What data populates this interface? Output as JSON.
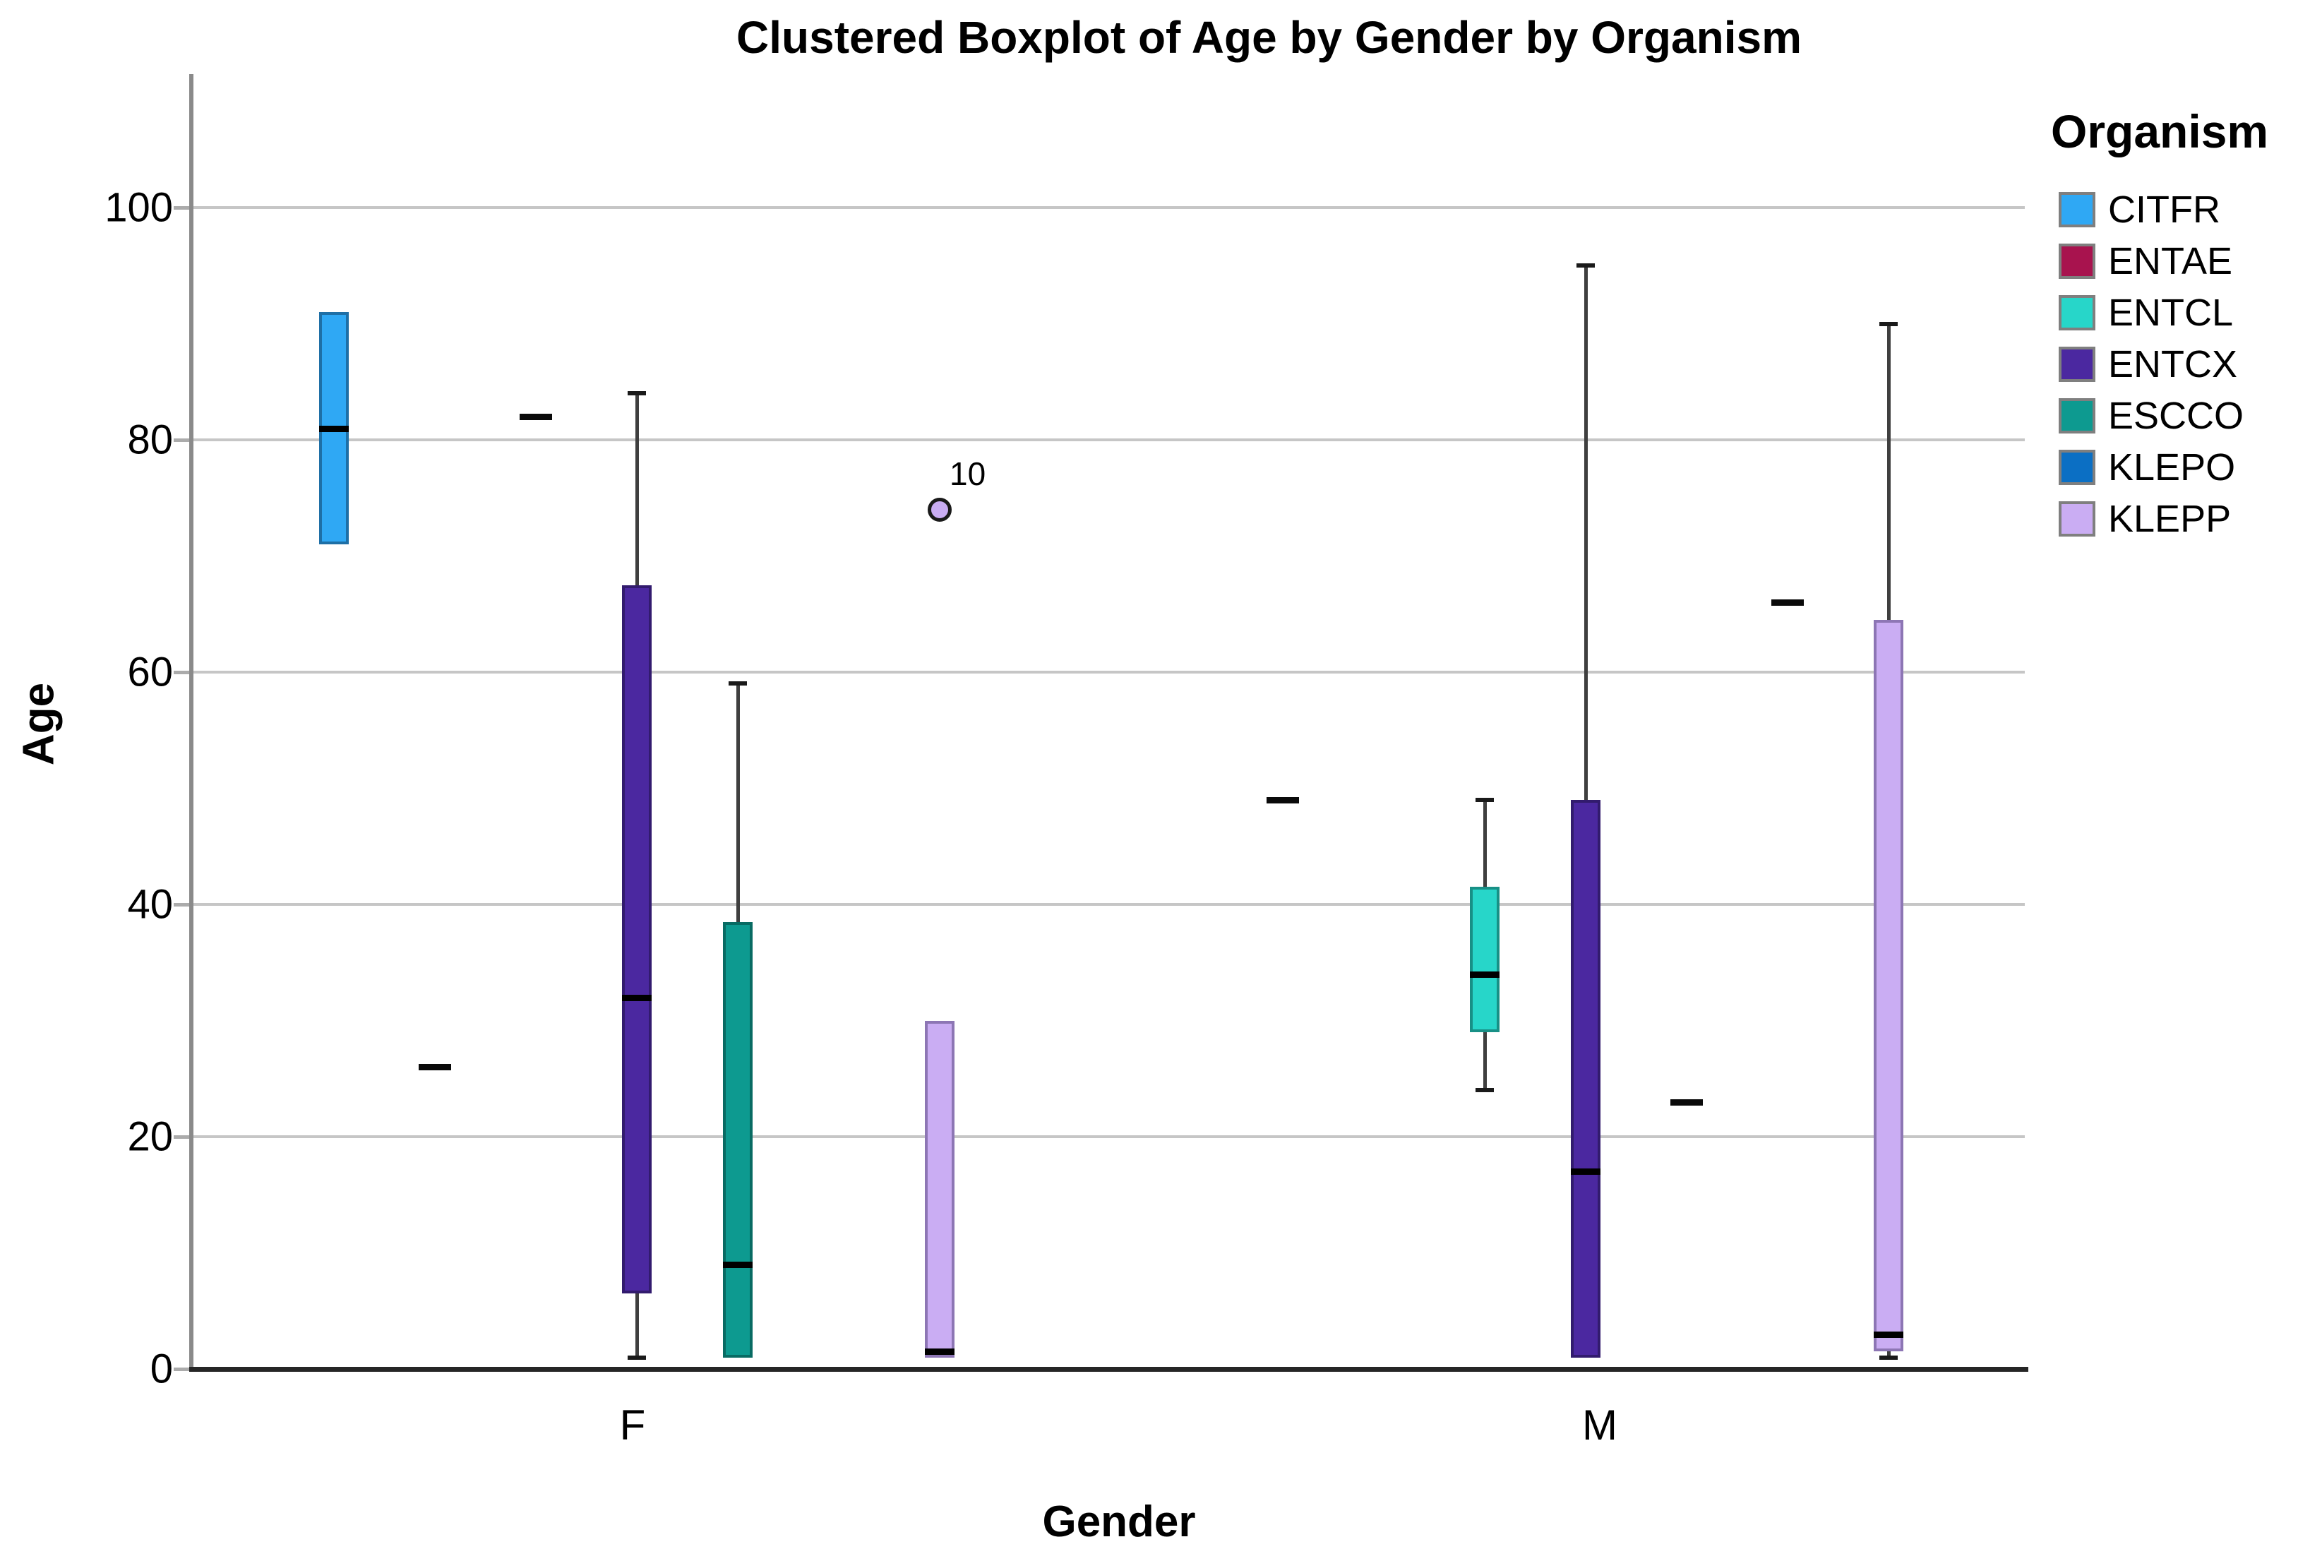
{
  "title": "Clustered Boxplot of Age by Gender by Organism",
  "chart_data": {
    "type": "boxplot",
    "title": "Clustered Boxplot of Age by Gender by Organism",
    "xlabel": "Gender",
    "ylabel": "Age",
    "ylim": [
      0,
      110
    ],
    "yticks": [
      0,
      20,
      40,
      60,
      80,
      100
    ],
    "grid": "horizontal",
    "categories": [
      "F",
      "M"
    ],
    "legend": {
      "title": "Organism",
      "position": "right",
      "entries": [
        "CITFR",
        "ENTAE",
        "ENTCL",
        "ENTCX",
        "ESCCO",
        "KLEPO",
        "KLEPP"
      ]
    },
    "colors": {
      "CITFR": {
        "fill": "#2fa8f4",
        "border": "#1e6fa6"
      },
      "ENTAE": {
        "fill": "#a8134e",
        "border": "#6e0c33"
      },
      "ENTCL": {
        "fill": "#27d6c9",
        "border": "#189086"
      },
      "ENTCX": {
        "fill": "#4b28a0",
        "border": "#321b6e"
      },
      "ESCCO": {
        "fill": "#0d9a90",
        "border": "#086b63"
      },
      "KLEPO": {
        "fill": "#0b6fc4",
        "border": "#074e8c"
      },
      "KLEPP": {
        "fill": "#caadf3",
        "border": "#8d76b4"
      }
    },
    "groups": [
      {
        "gender": "F",
        "items": [
          {
            "organism": "CITFR",
            "type": "box",
            "q1": 71,
            "median": 81,
            "q3": 91,
            "whisker_low": null,
            "whisker_high": null
          },
          {
            "organism": "ENTAE",
            "type": "dash",
            "value": 26
          },
          {
            "organism": "ENTCL",
            "type": "dash",
            "value": 82
          },
          {
            "organism": "ENTCX",
            "type": "box",
            "q1": 6.5,
            "median": 32,
            "q3": 67.5,
            "whisker_low": 1,
            "whisker_high": 84
          },
          {
            "organism": "ESCCO",
            "type": "box",
            "q1": 1,
            "median": 9,
            "q3": 38.5,
            "whisker_low": null,
            "whisker_high": 59
          },
          {
            "organism": "KLEPO",
            "type": "none"
          },
          {
            "organism": "KLEPP",
            "type": "box",
            "q1": 1,
            "median": 1.5,
            "q3": 30,
            "whisker_low": null,
            "whisker_high": null,
            "outlier": {
              "value": 74,
              "label": "10"
            }
          }
        ]
      },
      {
        "gender": "M",
        "items": [
          {
            "organism": "CITFR",
            "type": "dash",
            "value": 49
          },
          {
            "organism": "ENTAE",
            "type": "none"
          },
          {
            "organism": "ENTCL",
            "type": "box",
            "q1": 29,
            "median": 34,
            "q3": 41.5,
            "whisker_low": 24,
            "whisker_high": 49
          },
          {
            "organism": "ENTCX",
            "type": "box",
            "q1": 1,
            "median": 17,
            "q3": 49,
            "whisker_low": null,
            "whisker_high": 95
          },
          {
            "organism": "ESCCO",
            "type": "dash",
            "value": 23
          },
          {
            "organism": "KLEPO",
            "type": "dash",
            "value": 66
          },
          {
            "organism": "KLEPP",
            "type": "box",
            "q1": 1.5,
            "median": 3,
            "q3": 64.5,
            "whisker_low": 1,
            "whisker_high": 90
          }
        ]
      }
    ]
  }
}
